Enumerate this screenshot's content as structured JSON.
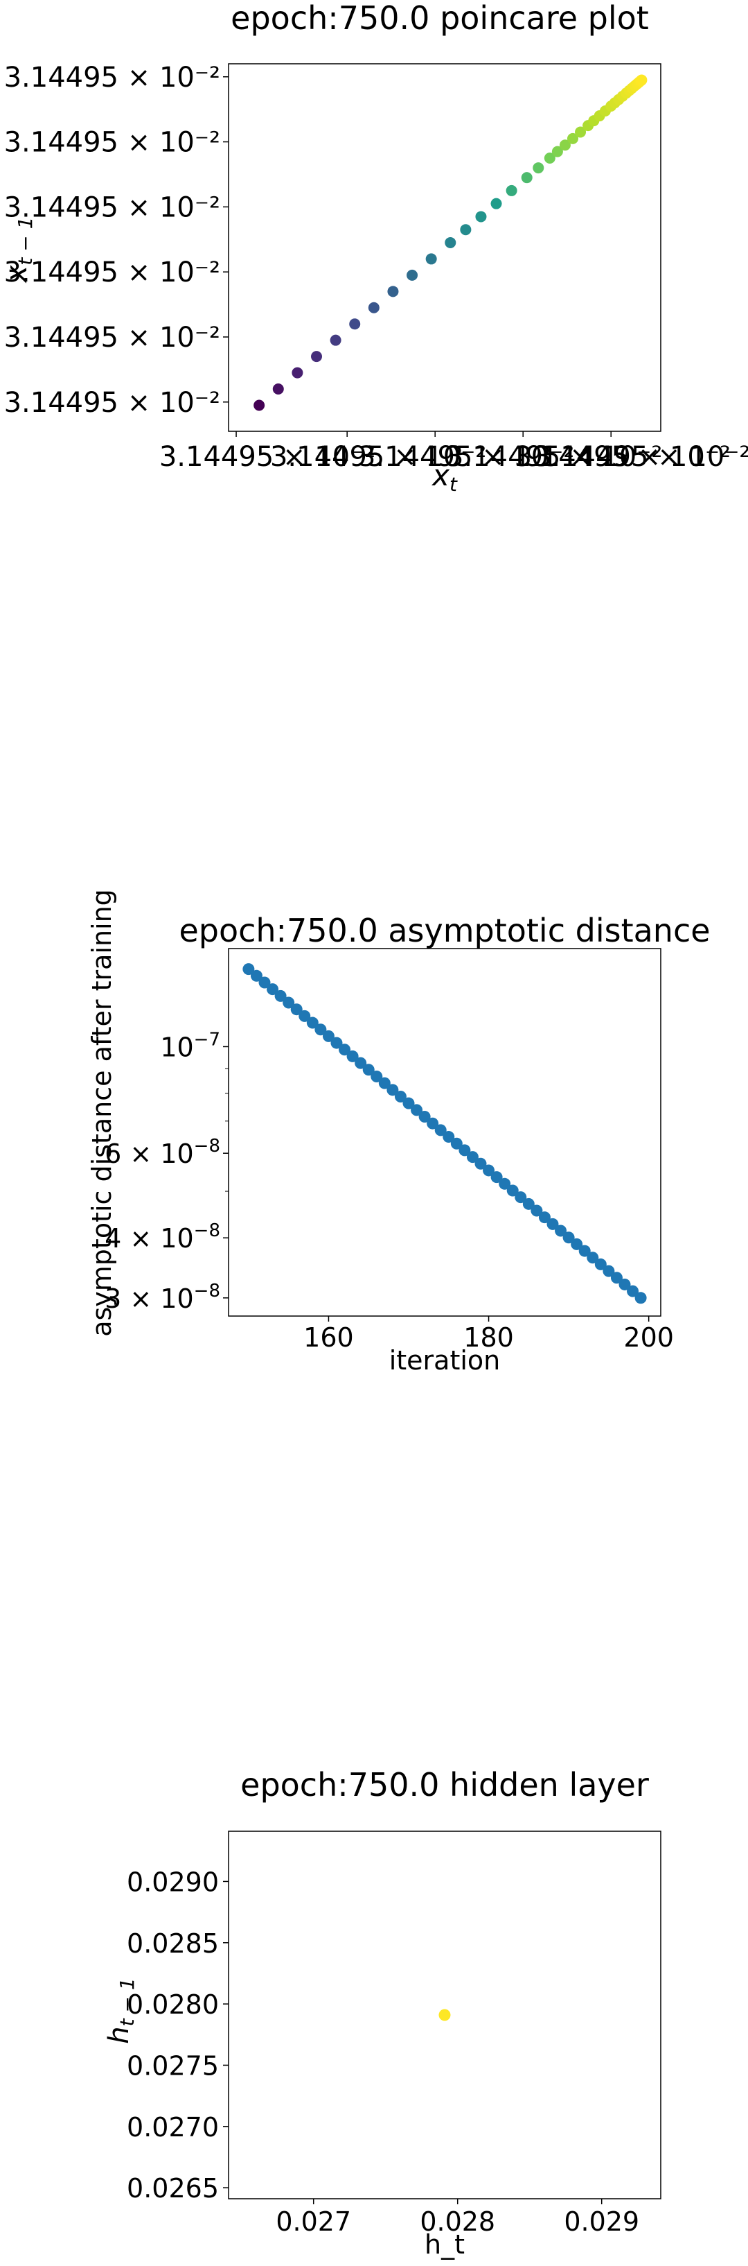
{
  "chart_data": [
    {
      "type": "scatter",
      "title": "epoch:750.0 poincare plot",
      "xlabel": "x_t",
      "ylabel": "x_{t-1}",
      "colormap": "viridis",
      "points": [
        [
          0.0,
          0.0
        ],
        [
          0.05,
          0.05
        ],
        [
          0.1,
          0.1
        ],
        [
          0.15,
          0.15
        ],
        [
          0.2,
          0.2
        ],
        [
          0.25,
          0.25
        ],
        [
          0.3,
          0.3
        ],
        [
          0.35,
          0.35
        ],
        [
          0.4,
          0.4
        ],
        [
          0.45,
          0.45
        ],
        [
          0.5,
          0.5
        ],
        [
          0.54,
          0.54
        ],
        [
          0.58,
          0.58
        ],
        [
          0.62,
          0.62
        ],
        [
          0.66,
          0.66
        ],
        [
          0.7,
          0.7
        ],
        [
          0.73,
          0.73
        ],
        [
          0.76,
          0.76
        ],
        [
          0.78,
          0.78
        ],
        [
          0.8,
          0.8
        ],
        [
          0.82,
          0.82
        ],
        [
          0.84,
          0.84
        ],
        [
          0.86,
          0.86
        ],
        [
          0.875,
          0.875
        ],
        [
          0.89,
          0.89
        ],
        [
          0.905,
          0.905
        ],
        [
          0.92,
          0.92
        ],
        [
          0.93,
          0.93
        ],
        [
          0.94,
          0.94
        ],
        [
          0.95,
          0.95
        ],
        [
          0.96,
          0.96
        ],
        [
          0.968,
          0.968
        ],
        [
          0.975,
          0.975
        ],
        [
          0.982,
          0.982
        ],
        [
          0.988,
          0.988
        ],
        [
          0.993,
          0.993
        ],
        [
          0.997,
          0.997
        ],
        [
          1.0,
          1.0
        ]
      ],
      "xlim": [
        -0.08,
        1.05
      ],
      "ylim": [
        -0.08,
        1.05
      ],
      "x_tick_positions": [
        -0.06,
        0.23,
        0.46,
        0.69,
        0.92
      ],
      "x_tick_labels": [
        "3.14495 × 10⁻²",
        "3.14495 × 10⁻²",
        "3.14495 × 10⁻²",
        "3.14495 × 10⁻²",
        "3.14495 × 10⁻²"
      ],
      "x_tick_label_extra": "3.14495 × 10⁻²",
      "y_tick_positions": [
        0.01,
        0.21,
        0.41,
        0.61,
        0.81,
        1.01
      ],
      "y_tick_labels": [
        "3.14495 × 10⁻²",
        "3.14495 × 10⁻²",
        "3.14495 × 10⁻²",
        "3.14495 × 10⁻²",
        "3.14495 × 10⁻²",
        "3.14495 × 10⁻²"
      ]
    },
    {
      "type": "scatter",
      "title": "epoch:750.0 asymptotic distance",
      "xlabel": "iteration",
      "ylabel": "asymptotic distance after training",
      "yscale": "log",
      "color": "#1f77b4",
      "x_start": 150,
      "x_end": 199,
      "y_start": 1.45e-07,
      "y_end": 3e-08,
      "xlim": [
        147.5,
        201.5
      ],
      "ylim": [
        2.75e-08,
        1.6e-07
      ],
      "x_ticks": [
        160,
        180,
        200
      ],
      "y_ticks": [
        3e-08,
        4e-08,
        6e-08,
        1e-07
      ],
      "y_tick_labels": [
        {
          "m": "3",
          "e": "−8"
        },
        {
          "m": "4",
          "e": "−8"
        },
        {
          "m": "6",
          "e": "−8"
        },
        {
          "m": "",
          "e": "−7"
        }
      ]
    },
    {
      "type": "scatter",
      "title": "epoch:750.0 hidden layer",
      "xlabel": "h_t",
      "ylabel": "h_{t-1}",
      "color": "#fde725",
      "points": [
        [
          0.02791,
          0.02791
        ]
      ],
      "xlim": [
        0.02641,
        0.02941
      ],
      "ylim": [
        0.02641,
        0.02941
      ],
      "x_ticks": [
        0.027,
        0.028,
        0.029
      ],
      "y_ticks": [
        0.0265,
        0.027,
        0.0275,
        0.028,
        0.0285,
        0.029
      ],
      "x_tick_labels": [
        "0.027",
        "0.028",
        "0.029"
      ],
      "y_tick_labels": [
        "0.0265",
        "0.0270",
        "0.0275",
        "0.0280",
        "0.0285",
        "0.0290"
      ]
    }
  ]
}
